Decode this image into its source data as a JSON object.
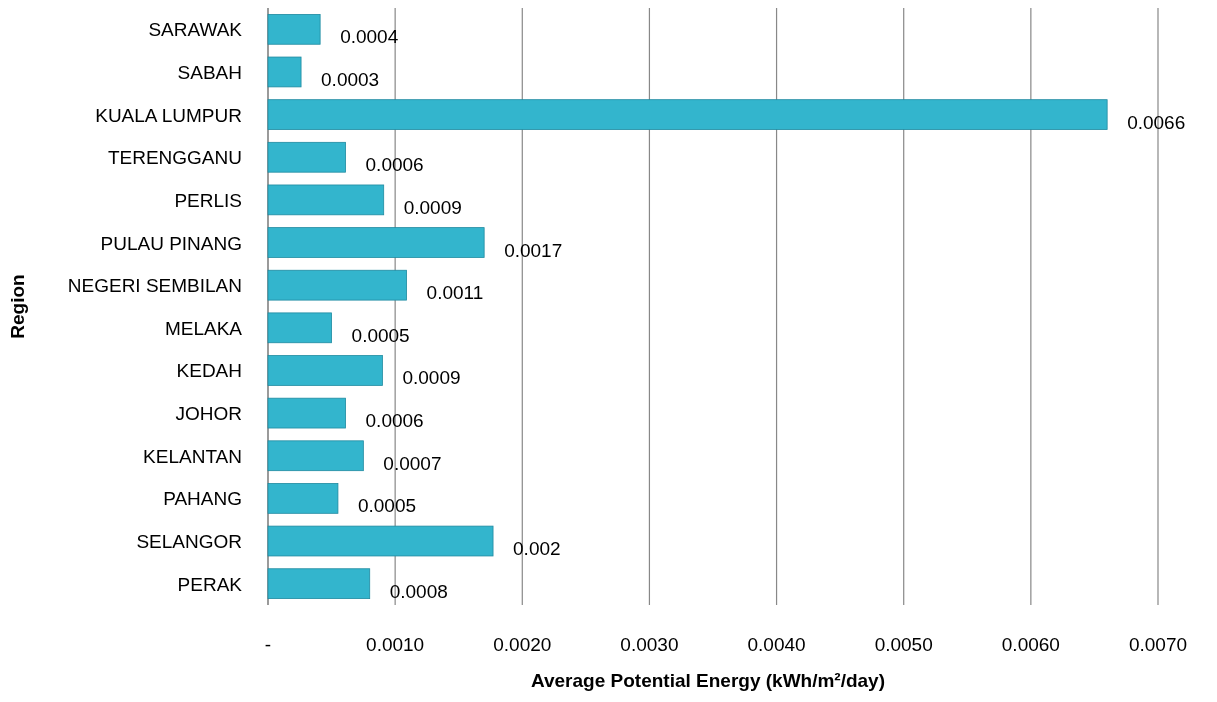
{
  "chart_data": {
    "type": "bar",
    "orientation": "horizontal",
    "xlabel": "Average Potential Energy (kWh/m²/day)",
    "ylabel": "Region",
    "categories": [
      "SARAWAK",
      "SABAH",
      "KUALA LUMPUR",
      "TERENGGANU",
      "PERLIS",
      "PULAU PINANG",
      "NEGERI SEMBILAN",
      "MELAKA",
      "KEDAH",
      "JOHOR",
      "KELANTAN",
      "PAHANG",
      "SELANGOR",
      "PERAK"
    ],
    "values": [
      0.00041,
      0.00026,
      0.0066,
      0.00061,
      0.00091,
      0.0017,
      0.00109,
      0.0005,
      0.0009,
      0.00061,
      0.00075,
      0.00055,
      0.00177,
      0.0008
    ],
    "value_labels": [
      "0.0004",
      "0.0003",
      "0.0066",
      "0.0006",
      "0.0009",
      "0.0017",
      "0.0011",
      "0.0005",
      "0.0009",
      "0.0006",
      "0.0007",
      "0.0005",
      "0.002",
      "0.0008"
    ],
    "color": "#33b5cd",
    "xlim": [
      0,
      0.007
    ],
    "xticks": [
      {
        "value": 0,
        "label": "-"
      },
      {
        "value": 0.001,
        "label": "0.0010"
      },
      {
        "value": 0.002,
        "label": "0.0020"
      },
      {
        "value": 0.003,
        "label": "0.0030"
      },
      {
        "value": 0.004,
        "label": "0.0040"
      },
      {
        "value": 0.005,
        "label": "0.0050"
      },
      {
        "value": 0.006,
        "label": "0.0060"
      },
      {
        "value": 0.007,
        "label": "0.0070"
      }
    ],
    "grid": "x"
  }
}
